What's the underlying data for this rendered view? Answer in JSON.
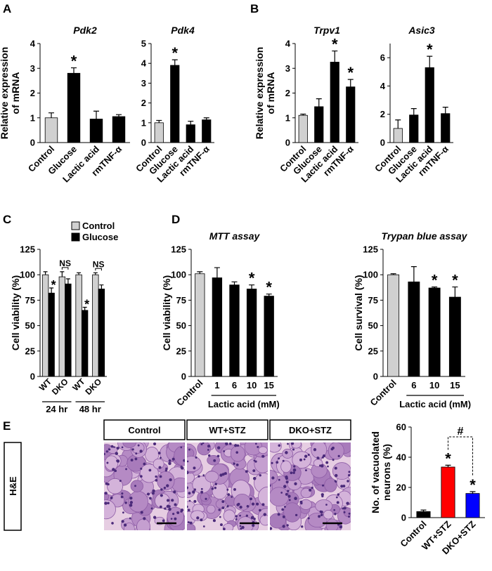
{
  "panels": [
    "A",
    "B",
    "C",
    "D",
    "E"
  ],
  "histology": {
    "row_label": "H&E",
    "columns": [
      "Control",
      "WT+STZ",
      "DKO+STZ"
    ]
  },
  "chart_data": [
    {
      "type": "bar",
      "title": "Pdk2",
      "ylabel": [
        "Relative expression",
        "of mRNA"
      ],
      "categories": [
        "Control",
        "Glucose",
        "Lactic acid",
        "rmTNF-α"
      ],
      "values": [
        1,
        2.8,
        0.95,
        1.05
      ],
      "errors": [
        0.2,
        0.22,
        0.32,
        0.08
      ],
      "colors": [
        "#d0d0d0",
        "#000000",
        "#000000",
        "#000000"
      ],
      "marks": [
        null,
        "*",
        null,
        null
      ],
      "ylim": [
        0,
        4
      ],
      "yticks": [
        0,
        1,
        2,
        3,
        4
      ]
    },
    {
      "type": "bar",
      "title": "Pdk4",
      "categories": [
        "Control",
        "Glucose",
        "Lactic acid",
        "rmTNF-α"
      ],
      "values": [
        1,
        3.9,
        0.9,
        1.15
      ],
      "errors": [
        0.12,
        0.28,
        0.18,
        0.1
      ],
      "colors": [
        "#d0d0d0",
        "#000000",
        "#000000",
        "#000000"
      ],
      "marks": [
        null,
        "*",
        null,
        null
      ],
      "ylim": [
        0,
        5
      ],
      "yticks": [
        0,
        1,
        2,
        3,
        4,
        5
      ]
    },
    {
      "type": "bar",
      "title": "Trpv1",
      "ylabel": [
        "Relative expression",
        "of mRNA"
      ],
      "categories": [
        "Control",
        "Glucose",
        "Lactic acid",
        "rmTNF-α"
      ],
      "values": [
        1.1,
        1.45,
        3.25,
        2.25
      ],
      "errors": [
        0.05,
        0.32,
        0.45,
        0.3
      ],
      "colors": [
        "#d0d0d0",
        "#000000",
        "#000000",
        "#000000"
      ],
      "marks": [
        null,
        null,
        "*",
        "*"
      ],
      "ylim": [
        0,
        4
      ],
      "yticks": [
        0,
        1,
        2,
        3,
        4
      ]
    },
    {
      "type": "bar",
      "title": "Asic3",
      "categories": [
        "Control",
        "Glucose",
        "Lactic acid",
        "rmTNF-α"
      ],
      "values": [
        1,
        1.95,
        5.3,
        2.05
      ],
      "errors": [
        0.6,
        0.45,
        0.8,
        0.45
      ],
      "colors": [
        "#d0d0d0",
        "#000000",
        "#000000",
        "#000000"
      ],
      "marks": [
        null,
        null,
        "*",
        null
      ],
      "ylim": [
        0,
        7
      ],
      "yticks": [
        0,
        2,
        4,
        6
      ]
    },
    {
      "type": "grouped_bar",
      "ylabel": [
        "Cell viability (%)"
      ],
      "categories": [
        "WT",
        "DKO",
        "WT",
        "DKO"
      ],
      "groups": [
        "24 hr",
        "48 hr"
      ],
      "series": [
        {
          "name": "Control",
          "color": "#d0d0d0",
          "values": [
            100,
            98,
            100,
            100
          ],
          "errors": [
            3,
            5,
            2,
            2
          ]
        },
        {
          "name": "Glucose",
          "color": "#000000",
          "values": [
            82,
            91,
            65,
            86
          ],
          "errors": [
            5,
            5,
            3,
            4
          ],
          "marks": [
            "*",
            null,
            "*",
            null
          ]
        }
      ],
      "pair_marks": [
        null,
        "NS",
        null,
        "NS"
      ],
      "ylim": [
        0,
        125
      ],
      "yticks": [
        0,
        25,
        50,
        75,
        100,
        125
      ]
    },
    {
      "type": "bar",
      "title": "MTT assay",
      "ylabel": [
        "Cell viability (%)"
      ],
      "xlabel": "Lactic acid (mM)",
      "categories": [
        "Control",
        "1",
        "6",
        "10",
        "15"
      ],
      "values": [
        101,
        97,
        90,
        86,
        79
      ],
      "errors": [
        2,
        10,
        3,
        4,
        2
      ],
      "colors": [
        "#d0d0d0",
        "#000000",
        "#000000",
        "#000000",
        "#000000"
      ],
      "marks": [
        null,
        null,
        null,
        "*",
        "*"
      ],
      "ylim": [
        0,
        125
      ],
      "yticks": [
        0,
        25,
        50,
        75,
        100,
        125
      ]
    },
    {
      "type": "bar",
      "title": "Trypan blue assay",
      "ylabel": [
        "Cell survival (%)"
      ],
      "xlabel": "Lactic acid (mM)",
      "categories": [
        "Control",
        "6",
        "10",
        "15"
      ],
      "values": [
        100,
        93,
        87,
        78
      ],
      "errors": [
        1,
        15,
        1,
        10
      ],
      "colors": [
        "#d0d0d0",
        "#000000",
        "#000000",
        "#000000"
      ],
      "marks": [
        null,
        null,
        "*",
        "*"
      ],
      "ylim": [
        0,
        125
      ],
      "yticks": [
        0,
        25,
        50,
        75,
        100,
        125
      ]
    },
    {
      "type": "bar",
      "ylabel": [
        "No. of vacuolated",
        "neurons (%)"
      ],
      "categories": [
        "Control",
        "WT+STZ",
        "DKO+STZ"
      ],
      "values": [
        4,
        33.5,
        16
      ],
      "errors": [
        1,
        1.2,
        1.2
      ],
      "colors": [
        "#000000",
        "#ff0000",
        "#0000ff"
      ],
      "marks": [
        null,
        "*",
        "*"
      ],
      "bracket_label": "#",
      "ylim": [
        0,
        60
      ],
      "yticks": [
        0,
        20,
        40,
        60
      ]
    }
  ]
}
